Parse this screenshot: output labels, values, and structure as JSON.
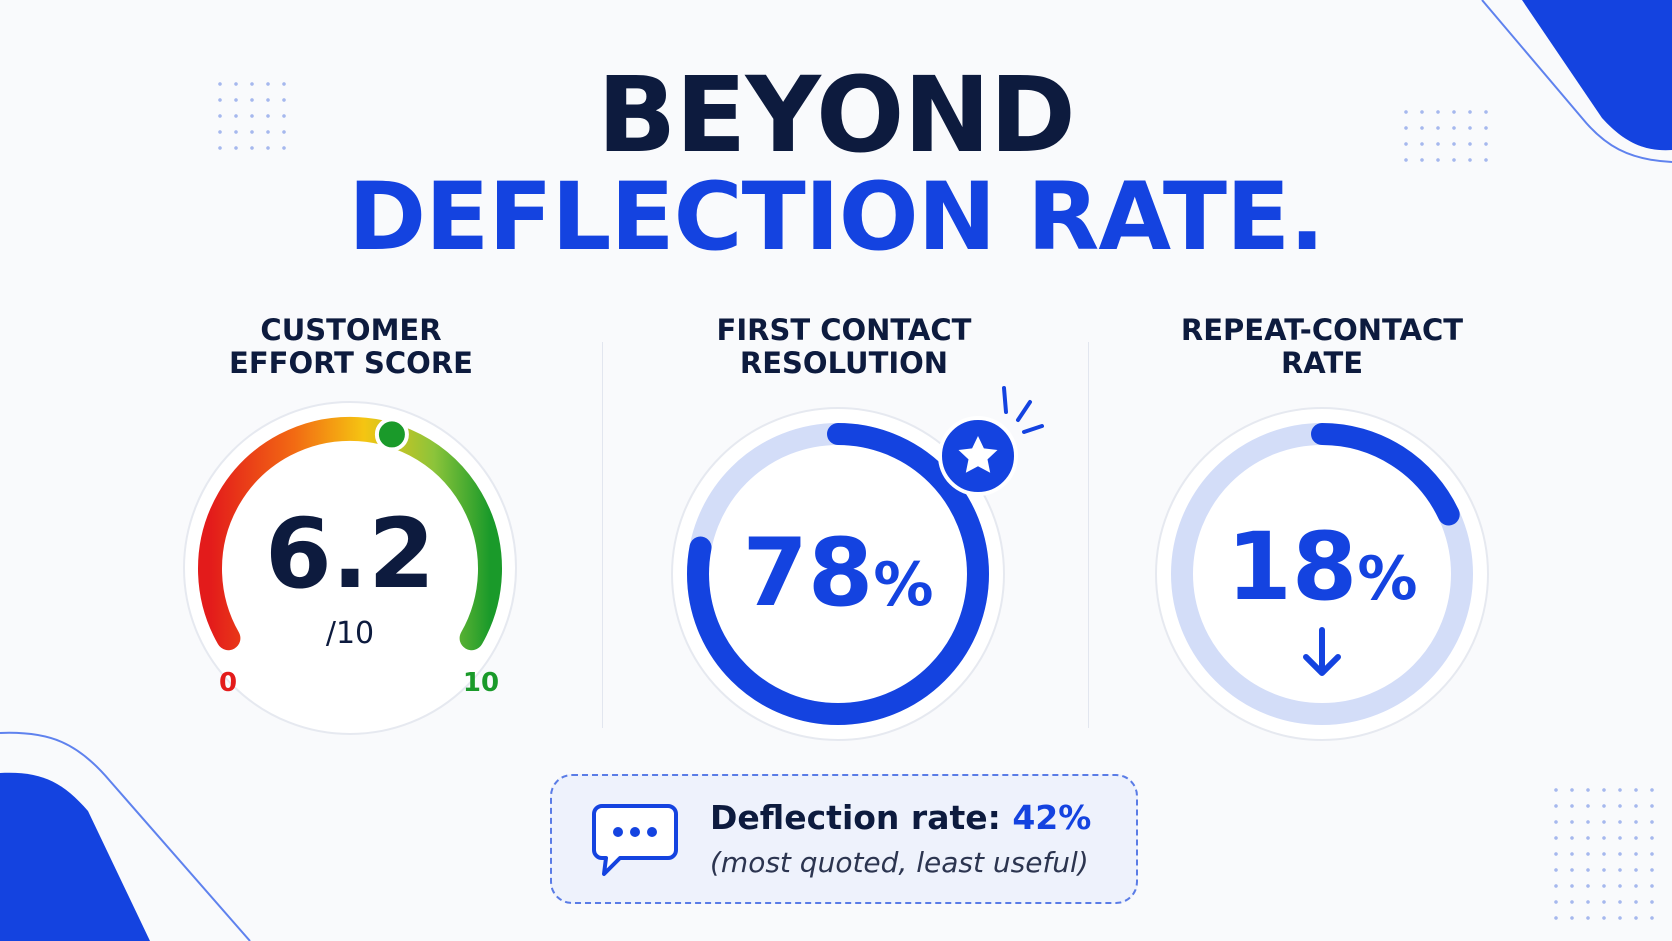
{
  "header": {
    "title_line1": "BEYOND",
    "title_line2": "DEFLECTION RATE."
  },
  "metrics": [
    {
      "label_line1": "CUSTOMER",
      "label_line2": "EFFORT SCORE",
      "value": "6.2",
      "suffix": "/10",
      "scale_min": "0",
      "scale_max": "10",
      "level": 0.62
    },
    {
      "label_line1": "FIRST CONTACT",
      "label_line2": "RESOLUTION",
      "value": "78",
      "unit": "%",
      "progress": 0.78,
      "badge_icon": "star-icon"
    },
    {
      "label_line1": "REPEAT-CONTACT",
      "label_line2": "RATE",
      "value": "18",
      "unit": "%",
      "progress": 0.18,
      "trend_icon": "arrow-down-icon"
    }
  ],
  "callout": {
    "icon": "chat-bubble-icon",
    "label": "Deflection rate:",
    "value": "42%",
    "note": "(most quoted, least useful)"
  },
  "colors": {
    "navy": "#0d1b3e",
    "brand_blue": "#1443e0",
    "track_blue": "#d3ddf8",
    "gauge_red": "#e31b1b",
    "gauge_green": "#1a9a2a"
  }
}
